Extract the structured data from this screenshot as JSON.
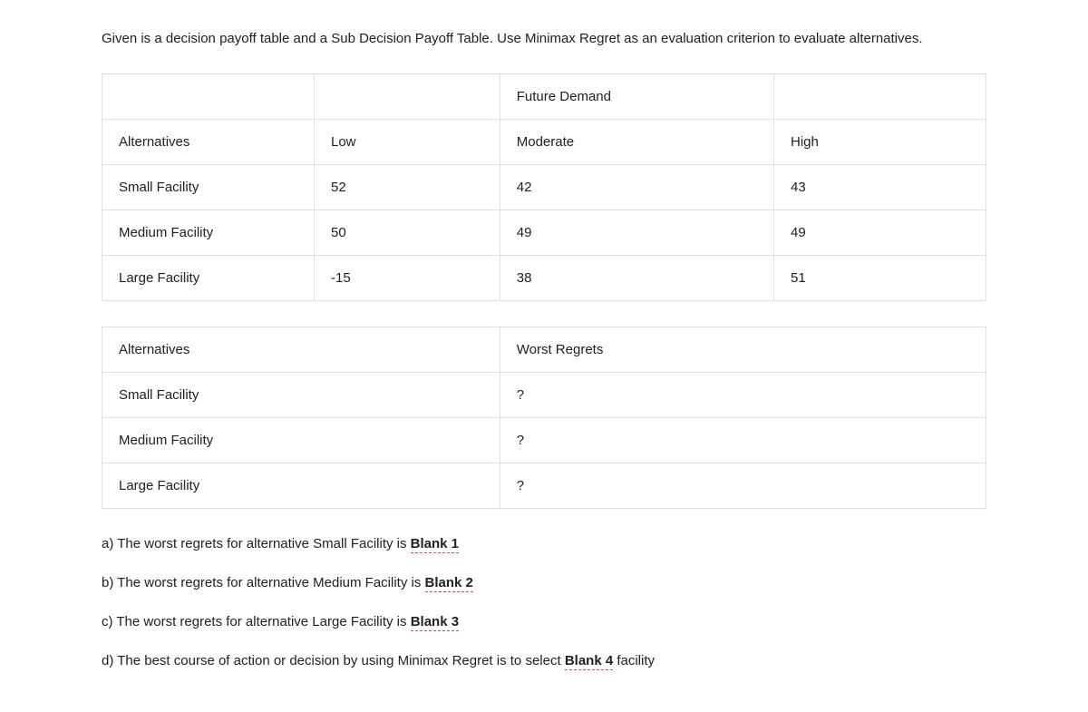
{
  "intro": "Given is a decision payoff table and a Sub Decision Payoff Table. Use Minimax Regret as an evaluation criterion to evaluate alternatives.",
  "payoff": {
    "header_future_demand": "Future Demand",
    "col_headers": {
      "alt": "Alternatives",
      "low": "Low",
      "mod": "Moderate",
      "high": "High"
    },
    "rows": [
      {
        "alt": "Small Facility",
        "low": "52",
        "mod": "42",
        "high": "43"
      },
      {
        "alt": "Medium Facility",
        "low": "50",
        "mod": "49",
        "high": "49"
      },
      {
        "alt": "Large Facility",
        "low": "-15",
        "mod": "38",
        "high": "51"
      }
    ]
  },
  "regret": {
    "col_headers": {
      "alt": "Alternatives",
      "worst": "Worst Regrets"
    },
    "rows": [
      {
        "alt": "Small Facility",
        "worst": "?"
      },
      {
        "alt": "Medium Facility",
        "worst": "?"
      },
      {
        "alt": "Large Facility",
        "worst": "?"
      }
    ]
  },
  "questions": {
    "a_pre": "a) The worst regrets for alternative Small Facility is ",
    "a_blank": "Blank 1",
    "b_pre": "b) The worst regrets for alternative Medium Facility is ",
    "b_blank": "Blank 2",
    "c_pre": "c) The worst regrets for alternative Large Facility is ",
    "c_blank": "Blank 3",
    "d_pre": "d) The best course of action or decision by using Minimax Regret is to select ",
    "d_blank": "Blank 4",
    "d_post": " facility"
  },
  "style": {
    "text_color": "#212121",
    "border_color": "#e0e0e0",
    "blank_underline_color": "#d24d57",
    "background_color": "#ffffff",
    "font_family": "Arial",
    "base_font_size_pt": 11
  }
}
